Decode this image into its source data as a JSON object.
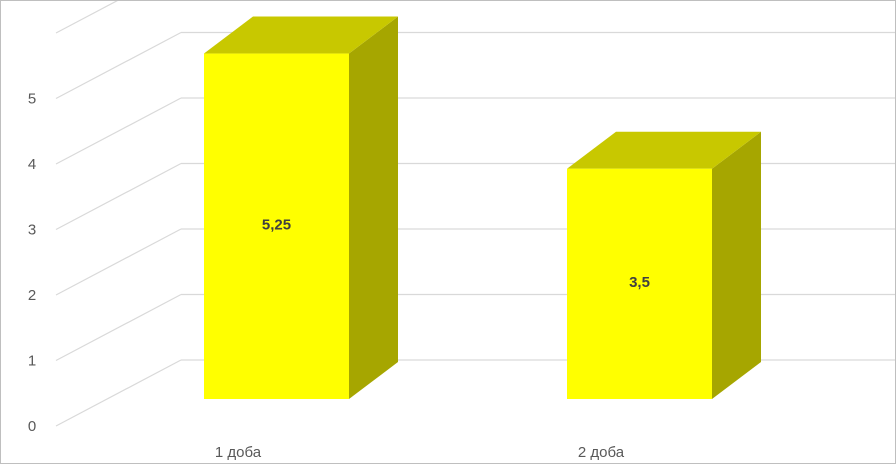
{
  "chart_data": {
    "type": "bar",
    "style": "3d-column",
    "categories": [
      "1 доба",
      "2 доба"
    ],
    "values": [
      5.25,
      3.5
    ],
    "data_labels": [
      "5,25",
      "3,5"
    ],
    "y_ticks": [
      "0",
      "1",
      "2",
      "3",
      "4",
      "5"
    ],
    "ylim": [
      0,
      6
    ],
    "grid": true,
    "legend": "none",
    "colors": {
      "bar_front": "#ffff00",
      "bar_top": "#c8c800",
      "bar_side": "#a6a600",
      "grid": "#d9d9d9",
      "axis_text": "#595959",
      "data_label": "#404040"
    }
  }
}
